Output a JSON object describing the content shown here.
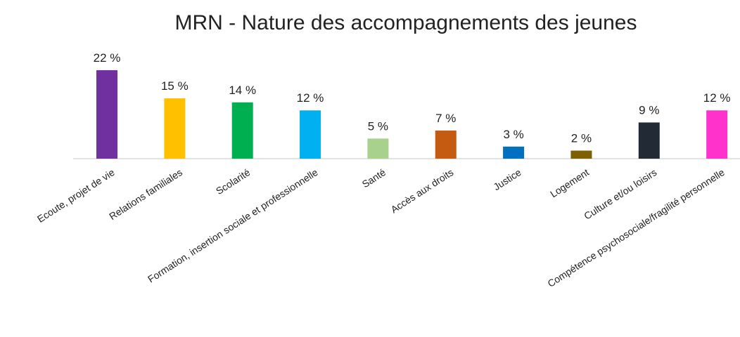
{
  "chart_data": {
    "type": "bar",
    "title": "MRN - Nature des accompagnements des jeunes",
    "categories": [
      "Ecoute, projet de vie",
      "Relations familiales",
      "Scolarité",
      "Formation, insertion sociale et professionnelle",
      "Santé",
      "Accès aux droits",
      "Justice",
      "Logement",
      "Culture et/ou loisirs",
      "Compétence psychosociale/fragilité personnelle"
    ],
    "values": [
      22,
      15,
      14,
      12,
      5,
      7,
      3,
      2,
      9,
      12
    ],
    "value_labels": [
      "22 %",
      "15 %",
      "14 %",
      "12 %",
      "5 %",
      "7 %",
      "3 %",
      "2 %",
      "9 %",
      "12 %"
    ],
    "colors": [
      "#7030a0",
      "#ffc000",
      "#00b050",
      "#00b0f0",
      "#a9d18e",
      "#c55a11",
      "#0070c0",
      "#7f6000",
      "#222a35",
      "#ff33cc"
    ]
  }
}
